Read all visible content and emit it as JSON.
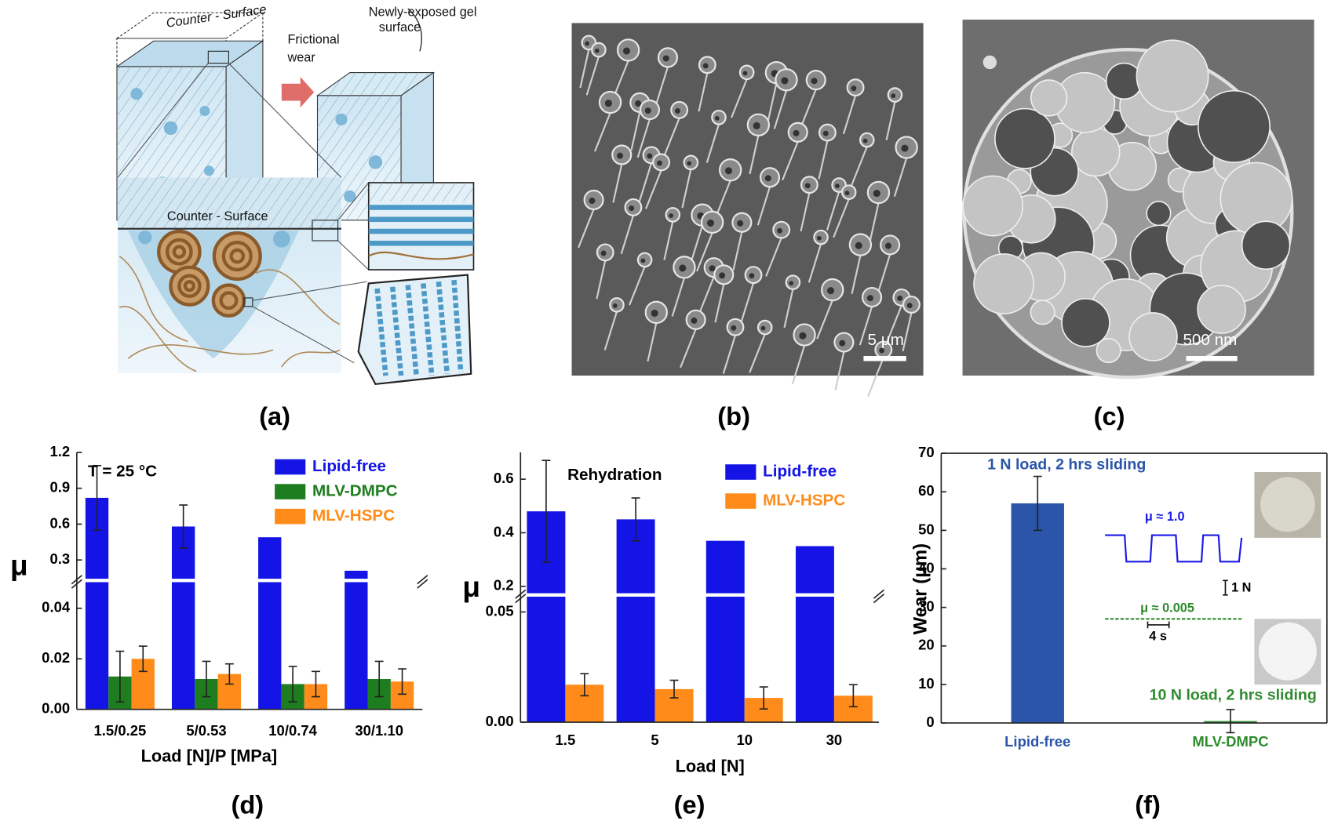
{
  "figure": {
    "panel_labels": [
      "(a)",
      "(b)",
      "(c)",
      "(d)",
      "(e)",
      "(f)"
    ],
    "diagram": {
      "counter_surface_top": "Counter - Surface",
      "frictional_wear": [
        "Frictional",
        "wear"
      ],
      "new_surface": [
        "Newly-exposed gel",
        "surface"
      ],
      "counter_surface": "Counter - Surface"
    },
    "scale_bars": [
      "5 µm",
      "500 nm"
    ]
  },
  "chart_data": [
    {
      "type": "bar",
      "annotation": "T = 25 °C",
      "xlabel": "Load [N]/P [MPa]",
      "ylabel": "μ",
      "categories": [
        "1.5/0.25",
        "5/0.53",
        "10/0.74",
        "30/1.10"
      ],
      "series": [
        {
          "name": "Lipid-free",
          "color": "#1414e6",
          "values": [
            0.82,
            0.58,
            0.49,
            0.21
          ],
          "errors": [
            0.27,
            0.18,
            null,
            null
          ]
        },
        {
          "name": "MLV-DMPC",
          "color": "#1e7d1e",
          "values": [
            0.013,
            0.012,
            0.01,
            0.012
          ],
          "errors": [
            0.01,
            0.007,
            0.007,
            0.007
          ]
        },
        {
          "name": "MLV-HSPC",
          "color": "#ff8c1a",
          "values": [
            0.02,
            0.014,
            0.01,
            0.011
          ],
          "errors": [
            0.005,
            0.004,
            0.005,
            0.005
          ]
        }
      ],
      "ylim": [
        0,
        1.2
      ],
      "ybreak": [
        0.05,
        0.15
      ],
      "yticks": [
        {
          "value": 0,
          "label": "0.00"
        },
        0.02,
        0.04,
        0.3,
        0.6,
        0.9,
        1.2
      ],
      "legend": "upper right"
    },
    {
      "type": "bar",
      "annotation": "Rehydration",
      "xlabel": "Load [N]",
      "ylabel": "μ",
      "categories": [
        "1.5",
        "5",
        "10",
        "30"
      ],
      "series": [
        {
          "name": "Lipid-free",
          "color": "#1414e6",
          "values": [
            0.48,
            0.45,
            0.37,
            0.35
          ],
          "errors": [
            0.19,
            0.08,
            null,
            null
          ]
        },
        {
          "name": "MLV-HSPC",
          "color": "#ff8c1a",
          "values": [
            0.017,
            0.015,
            0.011,
            0.012
          ],
          "errors": [
            0.005,
            0.004,
            0.005,
            0.005
          ]
        }
      ],
      "ylim": [
        0,
        0.7
      ],
      "ybreak": [
        0.055,
        0.19
      ],
      "yticks": [
        {
          "value": 0,
          "label": "0.00"
        },
        0.05,
        0.2,
        0.4,
        0.6
      ],
      "legend": "upper right"
    },
    {
      "type": "bar",
      "ylabel": "Wear (μm)",
      "categories": [
        "Lipid-free",
        "MLV-DMPC"
      ],
      "values": [
        57,
        0.5
      ],
      "errors": [
        7,
        3
      ],
      "colors": [
        "#2a55a8",
        "#2e8b2e"
      ],
      "annotations": [
        "1 N load, 2 hrs sliding",
        "10 N load, 2 hrs sliding"
      ],
      "inset": {
        "mu_high": "μ ≈ 1.0",
        "mu_low": "μ ≈ 0.005",
        "force_scale": "1 N",
        "time_scale": "4 s"
      },
      "ylim": [
        0,
        70
      ],
      "yticks": [
        0,
        10,
        20,
        30,
        40,
        50,
        60,
        70
      ]
    }
  ]
}
